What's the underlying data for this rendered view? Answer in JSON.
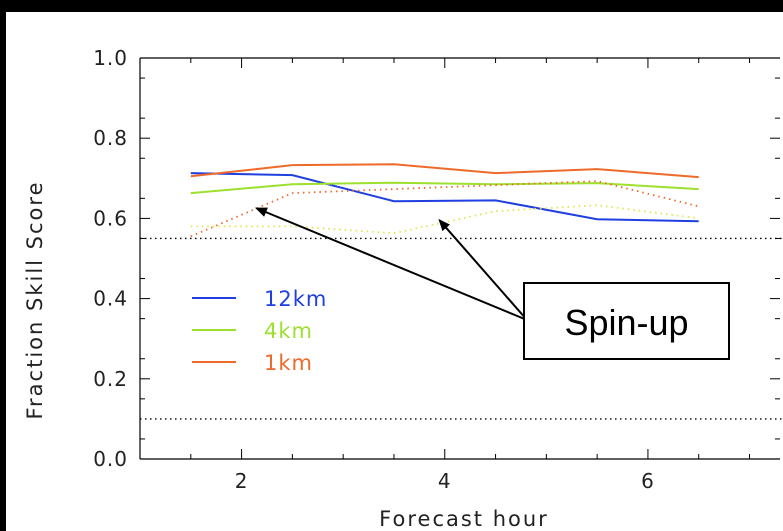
{
  "chart_data": {
    "type": "line",
    "xlabel": "Forecast hour",
    "ylabel": "Fraction Skill Score",
    "xlim": [
      1.0,
      7.3
    ],
    "ylim": [
      0.0,
      1.0
    ],
    "xticks": [
      {
        "value": 2,
        "label": "2"
      },
      {
        "value": 4,
        "label": "4"
      },
      {
        "value": 6,
        "label": "6"
      }
    ],
    "yticks": [
      {
        "value": 0.0,
        "label": "0.0"
      },
      {
        "value": 0.2,
        "label": "0.2"
      },
      {
        "value": 0.4,
        "label": "0.4"
      },
      {
        "value": 0.6,
        "label": "0.6"
      },
      {
        "value": 0.8,
        "label": "0.8"
      },
      {
        "value": 1.0,
        "label": "1.0"
      }
    ],
    "grid": false,
    "legend_position": "center-left",
    "reference_lines": [
      0.55,
      0.1
    ],
    "series": [
      {
        "name": "12km",
        "color": "#1f3fe0",
        "dash": "solid",
        "x": [
          1.5,
          2.5,
          3.5,
          4.5,
          5.5,
          6.5
        ],
        "y": [
          0.713,
          0.708,
          0.643,
          0.645,
          0.598,
          0.593
        ]
      },
      {
        "name": "4km",
        "color": "#9ee02e",
        "dash": "solid",
        "x": [
          1.5,
          2.5,
          3.5,
          4.5,
          5.5,
          6.5
        ],
        "y": [
          0.663,
          0.685,
          0.689,
          0.685,
          0.688,
          0.673
        ]
      },
      {
        "name": "1km",
        "color": "#ee6a2a",
        "dash": "solid",
        "x": [
          1.5,
          2.5,
          3.5,
          4.5,
          5.5,
          6.5
        ],
        "y": [
          0.705,
          0.733,
          0.735,
          0.713,
          0.723,
          0.703
        ]
      },
      {
        "color": "#e0e64a",
        "dash": "dotted",
        "x": [
          1.5,
          2.5,
          3.5,
          4.5,
          5.5,
          6.5
        ],
        "y": [
          0.58,
          0.58,
          0.563,
          0.618,
          0.633,
          0.6
        ]
      },
      {
        "color": "#ee6a2a",
        "dash": "dotted",
        "x": [
          1.5,
          2.5,
          3.5,
          4.5,
          5.5,
          6.5
        ],
        "y": [
          0.555,
          0.663,
          0.673,
          0.683,
          0.693,
          0.63
        ]
      }
    ],
    "annotation": {
      "text": "Spin-up",
      "arrow_targets": [
        {
          "x": 2.15,
          "y": 0.625
        },
        {
          "x": 3.95,
          "y": 0.595
        }
      ]
    }
  }
}
